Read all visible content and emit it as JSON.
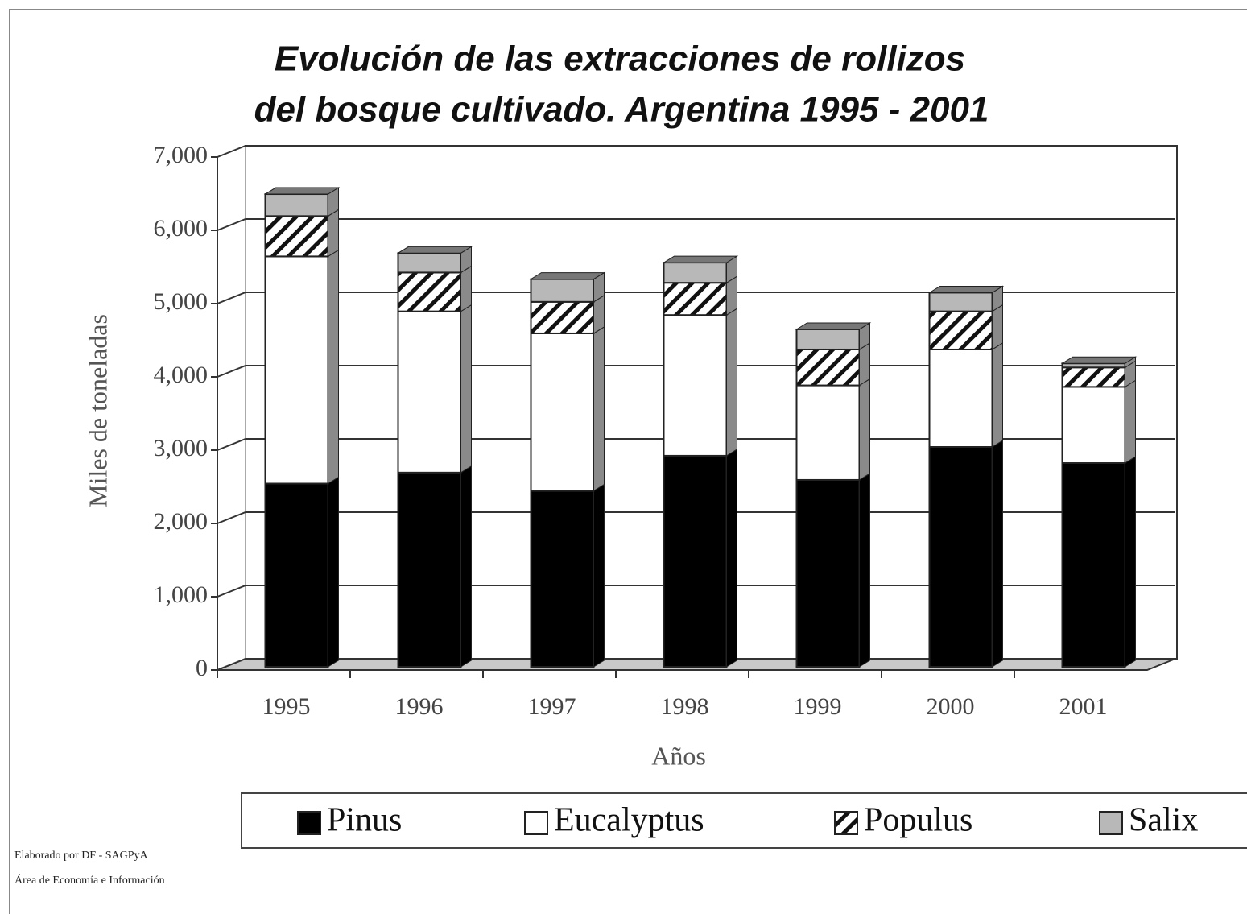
{
  "chart_data": {
    "type": "bar",
    "stacked": true,
    "title": [
      "Evolución de las extracciones de rollizos",
      "del bosque cultivado. Argentina 1995 - 2001"
    ],
    "y_label": "Miles de toneladas",
    "x_label": "Años",
    "categories": [
      "1995",
      "1996",
      "1997",
      "1998",
      "1999",
      "2000",
      "2001"
    ],
    "series": [
      {
        "name": "Pinus",
        "color": "#000000",
        "values": [
          2500,
          2650,
          2400,
          2880,
          2550,
          3000,
          2780
        ]
      },
      {
        "name": "Eucalyptus",
        "color": "#ffffff",
        "values": [
          3100,
          2200,
          2150,
          1920,
          1290,
          1330,
          1040
        ]
      },
      {
        "name": "Populus",
        "color": "hatch",
        "values": [
          550,
          530,
          430,
          440,
          490,
          520,
          265
        ]
      },
      {
        "name": "Salix",
        "color": "#b8b8b8",
        "values": [
          300,
          265,
          310,
          275,
          275,
          255,
          55
        ]
      }
    ],
    "ylim": [
      0,
      7000
    ],
    "yticks": [
      0,
      {
        "value": 1000,
        "label": "1,000"
      },
      {
        "value": 2000,
        "label": "2,000"
      },
      {
        "value": 3000,
        "label": "3,000"
      },
      {
        "value": 4000,
        "label": "4,000"
      },
      {
        "value": 5000,
        "label": "5,000"
      },
      {
        "value": 6000,
        "label": "6,000"
      },
      {
        "value": 7000,
        "label": "7,000"
      }
    ],
    "grid": true,
    "legend": "bottom",
    "notes": [
      "Elaborado por DF - SAGPyA",
      "Área de Economía e Información"
    ]
  }
}
